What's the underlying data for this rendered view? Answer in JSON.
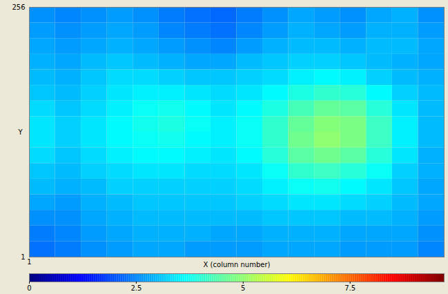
{
  "chart_data": {
    "type": "heatmap",
    "x_label": "X (column number)",
    "y_label": "Y",
    "xlim": [
      1,
      256
    ],
    "ylim": [
      1,
      256
    ],
    "xticks": [
      1
    ],
    "yticks": [
      1,
      256
    ],
    "cells": [
      [
        2.6,
        2.5,
        2.6,
        2.7,
        2.6,
        2.4,
        2.3,
        2.2,
        2.4,
        2.6,
        2.8,
        2.7,
        2.6,
        2.8,
        2.9,
        2.6
      ],
      [
        2.7,
        2.6,
        2.7,
        2.8,
        2.7,
        2.5,
        2.4,
        2.3,
        2.5,
        2.7,
        2.9,
        2.8,
        2.7,
        2.9,
        2.9,
        2.7
      ],
      [
        2.8,
        2.7,
        2.8,
        2.9,
        2.8,
        2.7,
        2.6,
        2.5,
        2.7,
        2.9,
        3.0,
        3.0,
        2.9,
        3.0,
        3.0,
        2.8
      ],
      [
        2.9,
        2.8,
        3.0,
        3.1,
        3.0,
        2.9,
        2.8,
        2.8,
        3.0,
        3.1,
        3.2,
        3.2,
        3.1,
        3.0,
        2.9,
        2.8
      ],
      [
        3.0,
        2.9,
        3.1,
        3.3,
        3.3,
        3.2,
        3.1,
        3.1,
        3.2,
        3.3,
        3.5,
        3.6,
        3.5,
        3.2,
        3.0,
        2.9
      ],
      [
        3.1,
        3.0,
        3.2,
        3.4,
        3.5,
        3.5,
        3.4,
        3.3,
        3.4,
        3.6,
        3.9,
        4.1,
        4.0,
        3.6,
        3.2,
        3.0
      ],
      [
        3.3,
        3.1,
        3.3,
        3.5,
        3.7,
        3.8,
        3.6,
        3.4,
        3.6,
        3.9,
        4.3,
        4.6,
        4.5,
        4.0,
        3.4,
        3.0
      ],
      [
        3.4,
        3.2,
        3.4,
        3.6,
        3.8,
        3.9,
        3.7,
        3.5,
        3.7,
        4.1,
        4.6,
        4.9,
        4.8,
        4.2,
        3.5,
        3.0
      ],
      [
        3.4,
        3.2,
        3.4,
        3.6,
        3.7,
        3.8,
        3.6,
        3.5,
        3.7,
        4.1,
        4.7,
        5.0,
        4.8,
        4.2,
        3.5,
        3.0
      ],
      [
        3.3,
        3.1,
        3.3,
        3.5,
        3.6,
        3.6,
        3.5,
        3.4,
        3.6,
        4.0,
        4.5,
        4.7,
        4.5,
        4.0,
        3.4,
        2.9
      ],
      [
        3.1,
        3.0,
        3.2,
        3.3,
        3.4,
        3.4,
        3.3,
        3.3,
        3.4,
        3.7,
        4.1,
        4.2,
        4.0,
        3.7,
        3.2,
        2.9
      ],
      [
        3.0,
        2.9,
        3.0,
        3.2,
        3.2,
        3.2,
        3.2,
        3.2,
        3.3,
        3.5,
        3.7,
        3.8,
        3.6,
        3.4,
        3.1,
        2.8
      ],
      [
        2.8,
        2.7,
        2.9,
        3.0,
        3.1,
        3.1,
        3.1,
        3.1,
        3.2,
        3.3,
        3.4,
        3.4,
        3.3,
        3.2,
        3.0,
        2.8
      ],
      [
        2.6,
        2.6,
        2.8,
        2.9,
        3.0,
        3.0,
        3.0,
        3.0,
        3.0,
        3.1,
        3.1,
        3.1,
        3.0,
        3.0,
        2.9,
        2.7
      ],
      [
        2.4,
        2.5,
        2.7,
        2.8,
        2.9,
        2.9,
        2.9,
        2.8,
        2.8,
        2.9,
        2.9,
        2.9,
        2.8,
        2.8,
        2.8,
        2.6
      ],
      [
        2.3,
        2.4,
        2.6,
        2.7,
        2.8,
        2.8,
        2.7,
        2.7,
        2.7,
        2.8,
        2.8,
        2.8,
        2.7,
        2.7,
        2.7,
        2.5
      ]
    ],
    "colorbar_range": [
      0,
      9.7
    ],
    "colorbar_ticks": [
      0,
      2.5,
      5,
      7.5
    ]
  }
}
